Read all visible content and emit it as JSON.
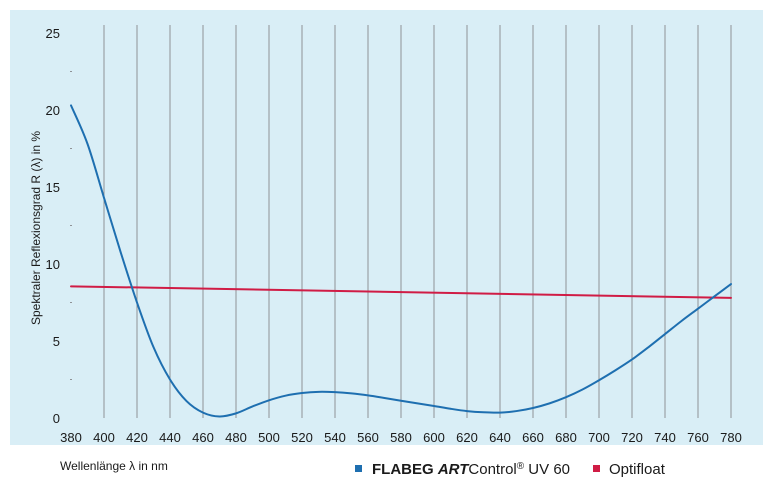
{
  "chart_data": {
    "type": "line",
    "title": "",
    "xlabel": "Wellenlänge λ in nm",
    "ylabel": "Spektraler Reflexionsgrad R (λ) in %",
    "xlim": [
      380,
      780
    ],
    "ylim": [
      0,
      25
    ],
    "x_ticks": [
      380,
      400,
      420,
      440,
      460,
      480,
      500,
      520,
      540,
      560,
      580,
      600,
      620,
      640,
      660,
      680,
      700,
      720,
      740,
      760,
      780
    ],
    "x_tick_labels": [
      "380",
      "400",
      "420",
      "440",
      "460",
      "480",
      "500",
      "520",
      "540",
      "560",
      "580",
      "600",
      "620",
      "640",
      "660",
      "680",
      "700",
      "720",
      "740",
      "760",
      "780"
    ],
    "y_ticks": [
      0,
      5,
      10,
      15,
      20,
      25
    ],
    "y_tick_labels": [
      "0",
      "5",
      "10",
      "15",
      "20",
      "25"
    ],
    "grid": "vertical",
    "legend_position": "bottom-right",
    "series": [
      {
        "legend_parts": [
          "FLABEG ",
          "ART",
          "Control",
          "®",
          " UV 60"
        ],
        "color": "#1e6fb0",
        "x": [
          380,
          390,
          400,
          410,
          420,
          430,
          440,
          450,
          460,
          470,
          480,
          490,
          500,
          510,
          520,
          530,
          540,
          550,
          560,
          570,
          580,
          590,
          600,
          610,
          620,
          630,
          640,
          650,
          660,
          670,
          680,
          690,
          700,
          710,
          720,
          730,
          740,
          750,
          760,
          770,
          780
        ],
        "y": [
          20.3,
          17.8,
          14.3,
          10.8,
          7.5,
          4.6,
          2.5,
          1.1,
          0.35,
          0.1,
          0.3,
          0.75,
          1.15,
          1.45,
          1.62,
          1.7,
          1.68,
          1.6,
          1.47,
          1.3,
          1.12,
          0.95,
          0.78,
          0.6,
          0.45,
          0.37,
          0.35,
          0.45,
          0.65,
          0.95,
          1.35,
          1.85,
          2.45,
          3.1,
          3.8,
          4.6,
          5.45,
          6.3,
          7.1,
          7.9,
          8.7
        ]
      },
      {
        "name": "Optifloat",
        "color": "#d01c45",
        "x": [
          380,
          780
        ],
        "y": [
          8.55,
          7.8
        ]
      }
    ]
  }
}
